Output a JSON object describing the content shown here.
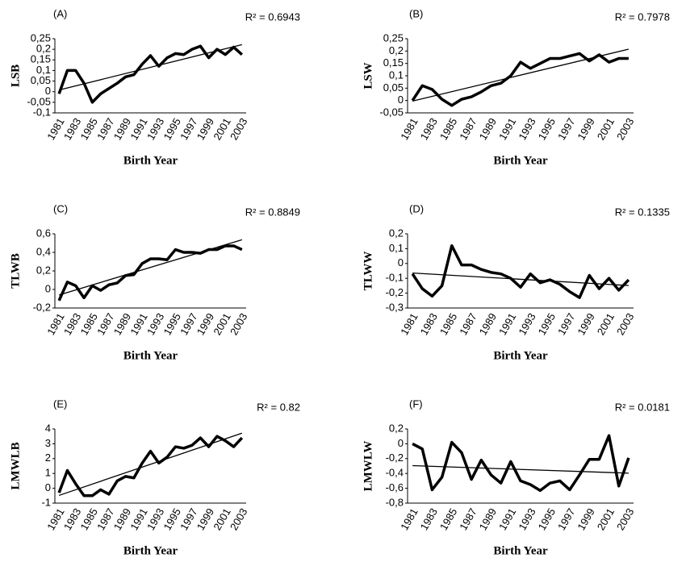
{
  "chart_data": [
    {
      "type": "line",
      "panel": "(A)",
      "annotation": "R² = 0.6943",
      "ylabel": "LSB",
      "xlabel": "Birth Year",
      "color": "#000000",
      "trendline": true,
      "categories": [
        "1981",
        null,
        "1983",
        null,
        "1985",
        null,
        "1987",
        null,
        "1989",
        null,
        "1991",
        null,
        "1993",
        null,
        "1995",
        null,
        "1997",
        null,
        "1999",
        null,
        "2001",
        null,
        "2003"
      ],
      "values": [
        -0.01,
        0.1,
        0.1,
        0.04,
        -0.05,
        -0.01,
        0.015,
        0.04,
        0.07,
        0.08,
        0.13,
        0.17,
        0.12,
        0.16,
        0.18,
        0.175,
        0.2,
        0.215,
        0.16,
        0.2,
        0.175,
        0.21,
        0.175
      ],
      "ylim": [
        -0.1,
        0.25
      ],
      "yticks": [
        {
          "value": -0.1,
          "label": "-0,1"
        },
        {
          "value": -0.05,
          "label": "-0,05"
        },
        0,
        {
          "value": 0.05,
          "label": "0,05"
        },
        {
          "value": 0.1,
          "label": "0,1"
        },
        {
          "value": 0.15,
          "label": "0,15"
        },
        {
          "value": 0.2,
          "label": "0,2"
        },
        {
          "value": 0.25,
          "label": "0,25"
        }
      ]
    },
    {
      "type": "line",
      "panel": "(B)",
      "annotation": "R² = 0.7978",
      "ylabel": "LSW",
      "xlabel": "Birth Year",
      "color": "#000000",
      "trendline": true,
      "categories": [
        "1981",
        null,
        "1983",
        null,
        "1985",
        null,
        "1987",
        null,
        "1989",
        null,
        "1991",
        null,
        "1993",
        null,
        "1995",
        null,
        "1997",
        null,
        "1999",
        null,
        "2001",
        null,
        "2003"
      ],
      "values": [
        0,
        0.06,
        0.045,
        0.005,
        -0.02,
        0.005,
        0.015,
        0.035,
        0.06,
        0.07,
        0.1,
        0.155,
        0.13,
        0.15,
        0.17,
        0.17,
        0.18,
        0.19,
        0.16,
        0.185,
        0.155,
        0.17,
        0.17
      ],
      "ylim": [
        -0.05,
        0.25
      ],
      "yticks": [
        {
          "value": -0.05,
          "label": "-0,05"
        },
        0,
        {
          "value": 0.05,
          "label": "0,05"
        },
        {
          "value": 0.1,
          "label": "0,1"
        },
        {
          "value": 0.15,
          "label": "0,15"
        },
        {
          "value": 0.2,
          "label": "0,2"
        },
        {
          "value": 0.25,
          "label": "0,25"
        }
      ]
    },
    {
      "type": "line",
      "panel": "(C)",
      "annotation": "R² = 0.8849",
      "ylabel": "TLWB",
      "xlabel": "Birth Year",
      "color": "#000000",
      "trendline": true,
      "categories": [
        "1981",
        null,
        "1983",
        null,
        "1985",
        null,
        "1987",
        null,
        "1989",
        null,
        "1991",
        null,
        "1993",
        null,
        "1995",
        null,
        "1997",
        null,
        "1999",
        null,
        "2001",
        null,
        "2003"
      ],
      "values": [
        -0.12,
        0.08,
        0.04,
        -0.09,
        0.04,
        -0.01,
        0.05,
        0.07,
        0.15,
        0.16,
        0.28,
        0.33,
        0.33,
        0.32,
        0.43,
        0.4,
        0.4,
        0.39,
        0.43,
        0.43,
        0.47,
        0.47,
        0.43
      ],
      "ylim": [
        -0.2,
        0.6
      ],
      "yticks": [
        {
          "value": -0.2,
          "label": "-0,2"
        },
        0,
        {
          "value": 0.2,
          "label": "0,2"
        },
        {
          "value": 0.4,
          "label": "0,4"
        },
        {
          "value": 0.6,
          "label": "0,6"
        }
      ]
    },
    {
      "type": "line",
      "panel": "(D)",
      "annotation": "R² = 0.1335",
      "ylabel": "TLWW",
      "xlabel": "Birth Year",
      "color": "#000000",
      "trendline": true,
      "categories": [
        "1981",
        null,
        "1983",
        null,
        "1985",
        null,
        "1987",
        null,
        "1989",
        null,
        "1991",
        null,
        "1993",
        null,
        "1995",
        null,
        "1997",
        null,
        "1999",
        null,
        "2001",
        null,
        "2003"
      ],
      "values": [
        -0.07,
        -0.17,
        -0.22,
        -0.15,
        0.12,
        -0.01,
        -0.01,
        -0.04,
        -0.06,
        -0.07,
        -0.1,
        -0.16,
        -0.07,
        -0.13,
        -0.11,
        -0.14,
        -0.19,
        -0.23,
        -0.08,
        -0.17,
        -0.1,
        -0.18,
        -0.11
      ],
      "ylim": [
        -0.3,
        0.2
      ],
      "yticks": [
        {
          "value": -0.3,
          "label": "-0,3"
        },
        {
          "value": -0.2,
          "label": "-0,2"
        },
        {
          "value": -0.1,
          "label": "-0,1"
        },
        0,
        {
          "value": 0.1,
          "label": "0,1"
        },
        {
          "value": 0.2,
          "label": "0,2"
        }
      ]
    },
    {
      "type": "line",
      "panel": "(E)",
      "annotation": "R² = 0.82",
      "ylabel": "LMWLB",
      "xlabel": "Birth Year",
      "color": "#000000",
      "trendline": true,
      "categories": [
        "1981",
        null,
        "1983",
        null,
        "1985",
        null,
        "1987",
        null,
        "1989",
        null,
        "1991",
        null,
        "1993",
        null,
        "1995",
        null,
        "1997",
        null,
        "1999",
        null,
        "2001",
        null,
        "2003"
      ],
      "values": [
        -0.3,
        1.2,
        0.3,
        -0.5,
        -0.5,
        -0.1,
        -0.4,
        0.5,
        0.8,
        0.7,
        1.7,
        2.5,
        1.7,
        2.1,
        2.8,
        2.7,
        2.9,
        3.4,
        2.8,
        3.5,
        3.2,
        2.8,
        3.4
      ],
      "ylim": [
        -1,
        4
      ],
      "yticks": [
        -1,
        0,
        1,
        2,
        3,
        4
      ]
    },
    {
      "type": "line",
      "panel": "(F)",
      "annotation": "R² = 0.0181",
      "ylabel": "LMWLW",
      "xlabel": "Birth Year",
      "color": "#000000",
      "trendline": true,
      "categories": [
        "1981",
        null,
        "1983",
        null,
        "1985",
        null,
        "1987",
        null,
        "1989",
        null,
        "1991",
        null,
        "1993",
        null,
        "1995",
        null,
        "1997",
        null,
        "1999",
        null,
        "2001",
        null,
        "2003"
      ],
      "values": [
        0,
        -0.07,
        -0.62,
        -0.45,
        0.02,
        -0.12,
        -0.48,
        -0.22,
        -0.42,
        -0.53,
        -0.24,
        -0.5,
        -0.55,
        -0.63,
        -0.53,
        -0.5,
        -0.62,
        -0.42,
        -0.21,
        -0.21,
        0.11,
        -0.57,
        -0.19
      ],
      "ylim": [
        -0.8,
        0.2
      ],
      "yticks": [
        {
          "value": -0.8,
          "label": "-0,8"
        },
        {
          "value": -0.6,
          "label": "-0,6"
        },
        {
          "value": -0.4,
          "label": "-0,4"
        },
        {
          "value": -0.2,
          "label": "-0,2"
        },
        0,
        {
          "value": 0.2,
          "label": "0,2"
        }
      ]
    }
  ]
}
